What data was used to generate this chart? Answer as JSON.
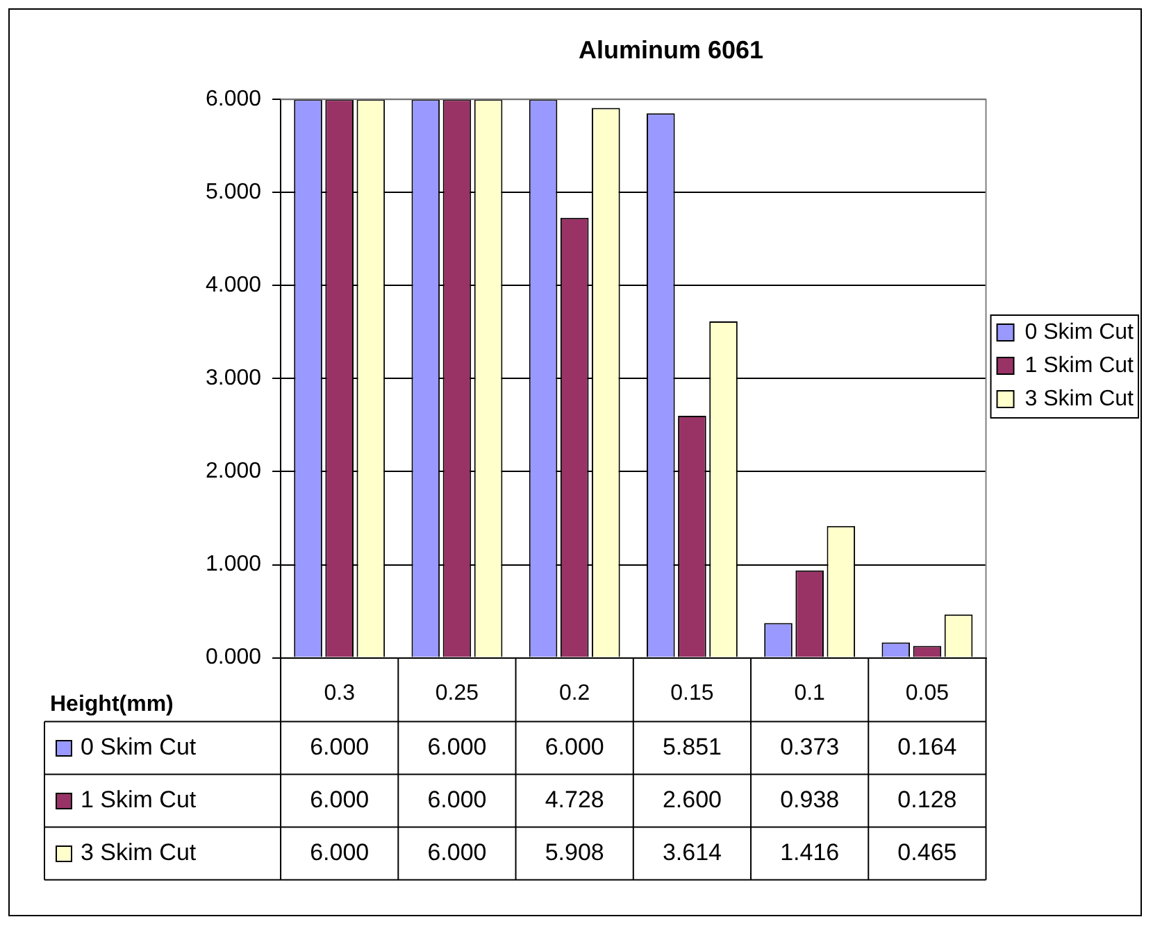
{
  "chart_data": {
    "type": "bar",
    "title": "Aluminum 6061",
    "xlabel": "Height(mm)",
    "categories": [
      "0.3",
      "0.25",
      "0.2",
      "0.15",
      "0.1",
      "0.05"
    ],
    "series": [
      {
        "name": "0 Skim Cut",
        "color": "#9999ff",
        "values": [
          6.0,
          6.0,
          6.0,
          5.851,
          0.373,
          0.164
        ],
        "value_labels": [
          "6.000",
          "6.000",
          "6.000",
          "5.851",
          "0.373",
          "0.164"
        ]
      },
      {
        "name": "1 Skim Cut",
        "color": "#993366",
        "values": [
          6.0,
          6.0,
          4.728,
          2.6,
          0.938,
          0.128
        ],
        "value_labels": [
          "6.000",
          "6.000",
          "4.728",
          "2.600",
          "0.938",
          "0.128"
        ]
      },
      {
        "name": "3 Skim Cut",
        "color": "#ffffcc",
        "values": [
          6.0,
          6.0,
          5.908,
          3.614,
          1.416,
          0.465
        ],
        "value_labels": [
          "6.000",
          "6.000",
          "5.908",
          "3.614",
          "1.416",
          "0.465"
        ]
      }
    ],
    "ylim": [
      0,
      6
    ],
    "yticks": [
      {
        "value": 0,
        "label": "0.000"
      },
      {
        "value": 1,
        "label": "1.000"
      },
      {
        "value": 2,
        "label": "2.000"
      },
      {
        "value": 3,
        "label": "3.000"
      },
      {
        "value": 4,
        "label": "4.000"
      },
      {
        "value": 5,
        "label": "5.000"
      },
      {
        "value": 6,
        "label": "6.000"
      }
    ],
    "grid": "y",
    "legend": "right"
  }
}
